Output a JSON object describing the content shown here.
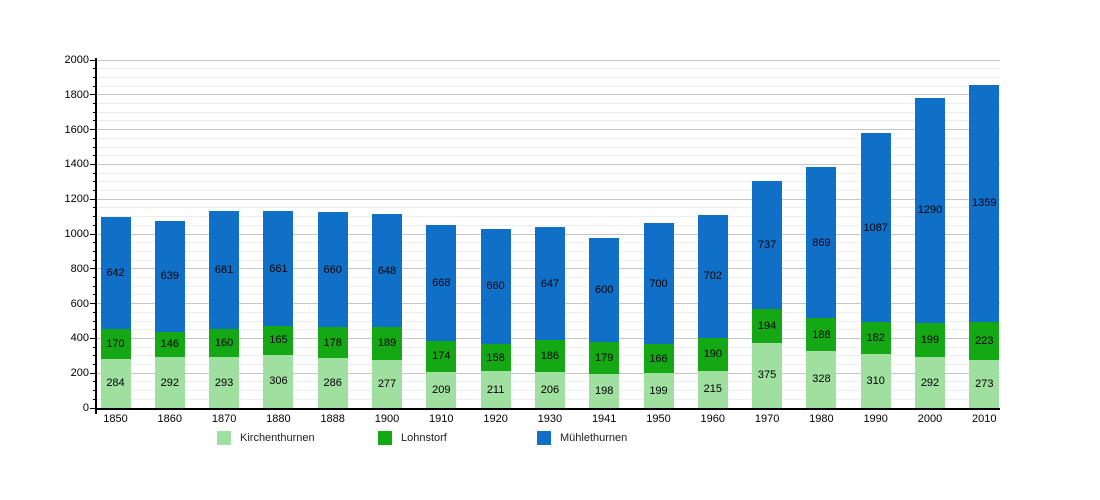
{
  "chart_data": {
    "type": "bar",
    "stacked": true,
    "title": "",
    "xlabel": "",
    "ylabel": "",
    "grid": true,
    "legend_position": "bottom",
    "ylim": [
      0,
      2000
    ],
    "y_major_step": 200,
    "y_minor_step": 50,
    "y_tick_labels": [
      "0",
      "200",
      "400",
      "600",
      "800",
      "1000",
      "1200",
      "1400",
      "1600",
      "1800",
      "2000"
    ],
    "categories": [
      "1850",
      "1860",
      "1870",
      "1880",
      "1888",
      "1900",
      "1910",
      "1920",
      "1930",
      "1941",
      "1950",
      "1960",
      "1970",
      "1980",
      "1990",
      "2000",
      "2010"
    ],
    "series": [
      {
        "name": "Kirchenthurnen",
        "color": "#9fdf9f",
        "values": [
          284,
          292,
          293,
          306,
          286,
          277,
          209,
          211,
          206,
          198,
          199,
          215,
          375,
          328,
          310,
          292,
          273
        ]
      },
      {
        "name": "Lohnstorf",
        "color": "#15a815",
        "values": [
          170,
          146,
          160,
          165,
          178,
          189,
          174,
          158,
          186,
          179,
          166,
          190,
          194,
          188,
          182,
          199,
          223
        ]
      },
      {
        "name": "Mühlethurnen",
        "color": "#1070c8",
        "values": [
          642,
          639,
          681,
          661,
          660,
          648,
          668,
          660,
          647,
          600,
          700,
          702,
          737,
          869,
          1087,
          1290,
          1359
        ]
      }
    ]
  }
}
